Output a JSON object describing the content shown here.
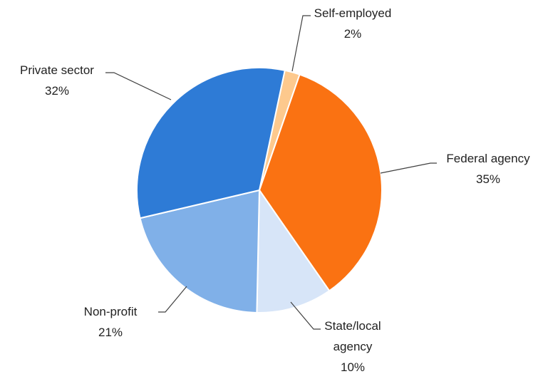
{
  "chart_data": {
    "type": "pie",
    "categories": [
      "Self-employed",
      "Federal agency",
      "State/local agency",
      "Non-profit",
      "Private sector"
    ],
    "values": [
      2,
      35,
      10,
      21,
      32
    ],
    "value_labels": [
      "2%",
      "35%",
      "10%",
      "21%",
      "32%"
    ],
    "colors": [
      "#fdc98d",
      "#fa7212",
      "#d7e5f8",
      "#80b0e8",
      "#2e7bd6"
    ]
  }
}
